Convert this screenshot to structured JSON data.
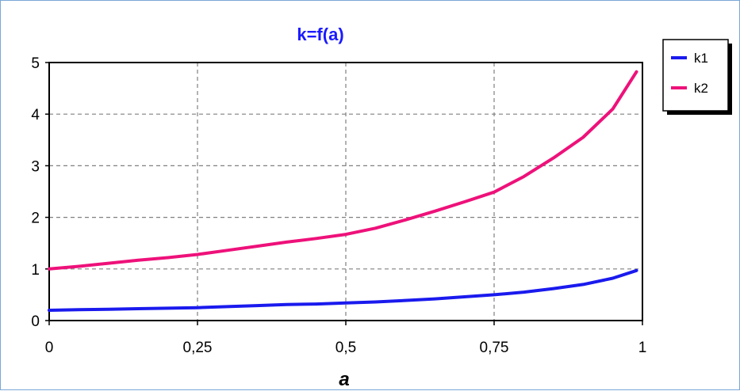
{
  "colors": {
    "title": "#1a1aff",
    "k1": "#1a1aee",
    "k2": "#ee117a",
    "grid": "#808080",
    "border": "#7aa7d8"
  },
  "chart_data": {
    "type": "line",
    "title": "k=f(a)",
    "xlabel": "a",
    "ylabel": "",
    "xlim": [
      0,
      1
    ],
    "ylim": [
      0,
      5
    ],
    "x_ticks": [
      0,
      0.25,
      0.5,
      0.75,
      1
    ],
    "x_tick_labels": [
      "0",
      "0,25",
      "0,5",
      "0,75",
      "1"
    ],
    "y_ticks": [
      0,
      1,
      2,
      3,
      4,
      5
    ],
    "y_tick_labels": [
      "0",
      "1",
      "2",
      "3",
      "4",
      "5"
    ],
    "grid": true,
    "legend_position": "top-right, outside plot",
    "x": [
      0,
      0.05,
      0.1,
      0.15,
      0.2,
      0.25,
      0.3,
      0.35,
      0.4,
      0.45,
      0.5,
      0.55,
      0.6,
      0.65,
      0.7,
      0.75,
      0.8,
      0.85,
      0.9,
      0.95,
      0.99
    ],
    "series": [
      {
        "name": "k1",
        "color": "#1a1aee",
        "values": [
          0.2,
          0.21,
          0.22,
          0.23,
          0.24,
          0.25,
          0.27,
          0.29,
          0.31,
          0.32,
          0.34,
          0.36,
          0.39,
          0.42,
          0.46,
          0.5,
          0.55,
          0.62,
          0.7,
          0.82,
          0.97
        ]
      },
      {
        "name": "k2",
        "color": "#ee117a",
        "values": [
          1.0,
          1.05,
          1.11,
          1.17,
          1.22,
          1.28,
          1.36,
          1.44,
          1.52,
          1.59,
          1.67,
          1.79,
          1.95,
          2.12,
          2.3,
          2.49,
          2.79,
          3.15,
          3.55,
          4.1,
          4.82
        ]
      }
    ]
  }
}
